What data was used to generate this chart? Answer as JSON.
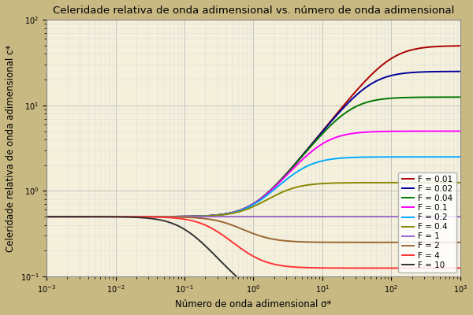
{
  "title": "Celeridade relativa de onda adimensional vs. número de onda adimensional",
  "xlabel": "Número de onda adimensional σ*",
  "ylabel": "Celeridade relativa de onda adimensional c*",
  "xlim": [
    0.001,
    1000
  ],
  "ylim": [
    0.1,
    100
  ],
  "background_outer": "#c8b882",
  "background_inner": "#f5f0dc",
  "grid_major_color": "#bbbbbb",
  "grid_minor_color": "#dddddd",
  "froude_numbers": [
    "0.01",
    "0.02",
    "0.04",
    "0.1",
    "0.2",
    "0.4",
    "1",
    "2",
    "4",
    "10"
  ],
  "froude_values": [
    0.01,
    0.02,
    0.04,
    0.1,
    0.2,
    0.4,
    1.0,
    2.0,
    4.0,
    10.0
  ],
  "line_colors": {
    "0.01": "#aa0000",
    "0.02": "#000099",
    "0.04": "#007700",
    "0.1": "#ff00ff",
    "0.2": "#00aaff",
    "0.4": "#888800",
    "1": "#9966cc",
    "2": "#996633",
    "4": "#ff3333",
    "10": "#333333"
  },
  "legend_labels": [
    "F = 0.01",
    "F = 0.02",
    "F = 0.04",
    "F = 0.1",
    "F = 0.2",
    "F = 0.4",
    "F = 1",
    "F = 2",
    "F = 4",
    "F = 10"
  ],
  "title_fontsize": 9.5,
  "label_fontsize": 8.5,
  "legend_fontsize": 7.5,
  "linewidth": 1.4
}
